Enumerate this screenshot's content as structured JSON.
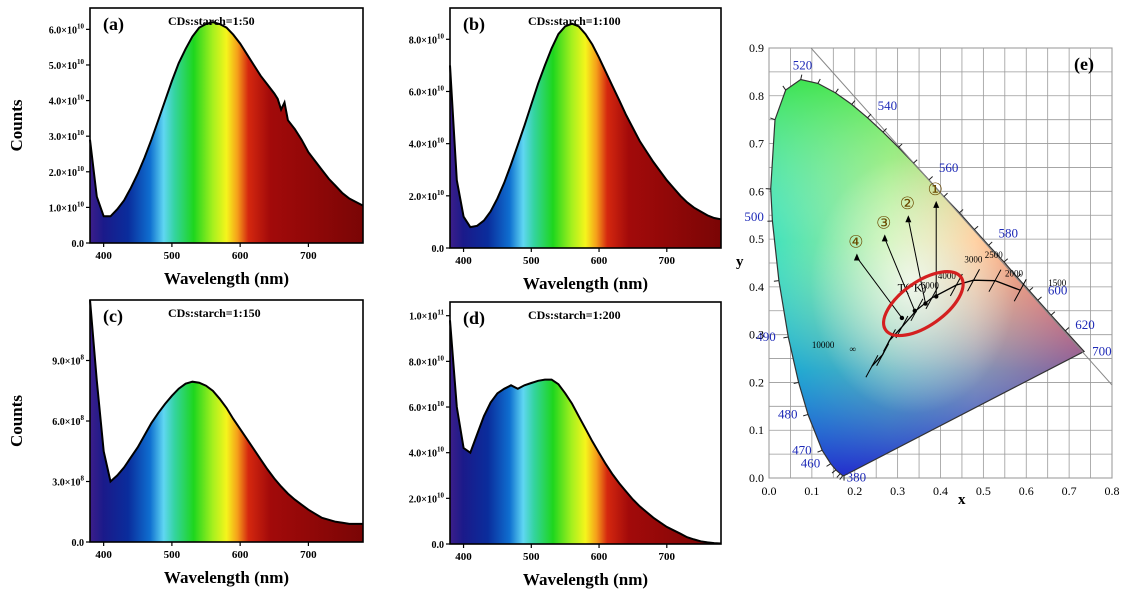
{
  "chart_data": [
    {
      "type": "area",
      "panel_label": "(a)",
      "title": "CDs:starch=1:50",
      "xlabel": "Wavelength (nm)",
      "ylabel": "Counts",
      "xlim": [
        380,
        780
      ],
      "ylim": [
        0,
        66000000000.0
      ],
      "xticks": [
        400,
        500,
        600,
        700
      ],
      "yticks": [
        {
          "v": 0,
          "l": "0.0"
        },
        {
          "v": 10000000000.0,
          "m": "1.0",
          "e": "10"
        },
        {
          "v": 20000000000.0,
          "m": "2.0",
          "e": "10"
        },
        {
          "v": 30000000000.0,
          "m": "3.0",
          "e": "10"
        },
        {
          "v": 40000000000.0,
          "m": "4.0",
          "e": "10"
        },
        {
          "v": 50000000000.0,
          "m": "5.0",
          "e": "10"
        },
        {
          "v": 60000000000.0,
          "m": "6.0",
          "e": "10"
        }
      ],
      "x": [
        380,
        390,
        400,
        410,
        420,
        430,
        440,
        450,
        460,
        470,
        480,
        490,
        500,
        510,
        520,
        530,
        540,
        550,
        560,
        570,
        580,
        590,
        600,
        610,
        620,
        630,
        640,
        650,
        655,
        660,
        665,
        670,
        680,
        690,
        700,
        710,
        720,
        730,
        740,
        750,
        760,
        770,
        780
      ],
      "y": [
        29000000000.0,
        13000000000.0,
        7500000000.0,
        7500000000.0,
        9500000000.0,
        12000000000.0,
        15500000000.0,
        19500000000.0,
        24000000000.0,
        29000000000.0,
        34500000000.0,
        40000000000.0,
        45500000000.0,
        50500000000.0,
        54500000000.0,
        58000000000.0,
        60500000000.0,
        61500000000.0,
        62000000000.0,
        61500000000.0,
        60500000000.0,
        58500000000.0,
        56000000000.0,
        53000000000.0,
        50000000000.0,
        47000000000.0,
        44500000000.0,
        42000000000.0,
        40500000000.0,
        37500000000.0,
        39500000000.0,
        34500000000.0,
        32000000000.0,
        29000000000.0,
        25500000000.0,
        23000000000.0,
        20500000000.0,
        18000000000.0,
        16000000000.0,
        14000000000.0,
        12500000000.0,
        11500000000.0,
        10500000000.0
      ]
    },
    {
      "type": "area",
      "panel_label": "(b)",
      "title": "CDs:starch=1:100",
      "xlabel": "Wavelength (nm)",
      "ylabel": "",
      "xlim": [
        380,
        780
      ],
      "ylim": [
        0,
        92000000000.0
      ],
      "xticks": [
        400,
        500,
        600,
        700
      ],
      "yticks": [
        {
          "v": 0,
          "l": "0.0"
        },
        {
          "v": 20000000000.0,
          "m": "2.0",
          "e": "10"
        },
        {
          "v": 40000000000.0,
          "m": "4.0",
          "e": "10"
        },
        {
          "v": 60000000000.0,
          "m": "6.0",
          "e": "10"
        },
        {
          "v": 80000000000.0,
          "m": "8.0",
          "e": "10"
        }
      ],
      "x": [
        380,
        390,
        400,
        410,
        420,
        430,
        440,
        450,
        460,
        470,
        480,
        490,
        500,
        510,
        520,
        530,
        540,
        550,
        560,
        570,
        580,
        590,
        600,
        610,
        620,
        630,
        640,
        650,
        660,
        670,
        680,
        690,
        700,
        710,
        720,
        730,
        740,
        750,
        760,
        770,
        780
      ],
      "y": [
        70000000000.0,
        26000000000.0,
        12000000000.0,
        8000000000.0,
        8500000000.0,
        10500000000.0,
        14000000000.0,
        19000000000.0,
        25000000000.0,
        32000000000.0,
        39500000000.0,
        47000000000.0,
        55000000000.0,
        63000000000.0,
        70000000000.0,
        76500000000.0,
        82000000000.0,
        85000000000.0,
        86000000000.0,
        85000000000.0,
        82000000000.0,
        78000000000.0,
        73000000000.0,
        67500000000.0,
        62000000000.0,
        56500000000.0,
        51000000000.0,
        46000000000.0,
        41000000000.0,
        37000000000.0,
        33000000000.0,
        29500000000.0,
        26000000000.0,
        23000000000.0,
        20000000000.0,
        17500000000.0,
        15500000000.0,
        14000000000.0,
        12500000000.0,
        11500000000.0,
        11000000000.0
      ]
    },
    {
      "type": "area",
      "panel_label": "(c)",
      "title": "CDs:starch=1:150",
      "xlabel": "Wavelength (nm)",
      "ylabel": "Counts",
      "xlim": [
        380,
        780
      ],
      "ylim": [
        0,
        1200000000.0
      ],
      "xticks": [
        400,
        500,
        600,
        700
      ],
      "yticks": [
        {
          "v": 0,
          "l": "0.0"
        },
        {
          "v": 300000000.0,
          "m": "3.0",
          "e": "8"
        },
        {
          "v": 600000000.0,
          "m": "6.0",
          "e": "8"
        },
        {
          "v": 900000000.0,
          "m": "9.0",
          "e": "8"
        }
      ],
      "x": [
        380,
        390,
        400,
        410,
        420,
        430,
        440,
        450,
        460,
        470,
        480,
        490,
        500,
        510,
        520,
        530,
        540,
        550,
        560,
        570,
        580,
        590,
        600,
        610,
        620,
        630,
        640,
        650,
        660,
        670,
        680,
        690,
        700,
        710,
        720,
        730,
        740,
        750,
        760,
        770,
        780
      ],
      "y": [
        1200000000.0,
        800000000.0,
        450000000.0,
        300000000.0,
        330000000.0,
        370000000.0,
        420000000.0,
        470000000.0,
        530000000.0,
        590000000.0,
        640000000.0,
        685000000.0,
        725000000.0,
        760000000.0,
        785000000.0,
        795000000.0,
        790000000.0,
        775000000.0,
        750000000.0,
        710000000.0,
        665000000.0,
        610000000.0,
        560000000.0,
        510000000.0,
        460000000.0,
        410000000.0,
        360000000.0,
        315000000.0,
        275000000.0,
        240000000.0,
        210000000.0,
        185000000.0,
        160000000.0,
        140000000.0,
        120000000.0,
        110000000.0,
        100000000.0,
        95000000.0,
        90000000.0,
        90000000.0,
        90000000.0
      ]
    },
    {
      "type": "area",
      "panel_label": "(d)",
      "title": "CDs:starch=1:200",
      "xlabel": "Wavelength (nm)",
      "ylabel": "",
      "xlim": [
        380,
        780
      ],
      "ylim": [
        0,
        106000000000.0
      ],
      "xticks": [
        400,
        500,
        600,
        700
      ],
      "yticks": [
        {
          "v": 0,
          "l": "0.0"
        },
        {
          "v": 20000000000.0,
          "m": "2.0",
          "e": "10"
        },
        {
          "v": 40000000000.0,
          "m": "4.0",
          "e": "10"
        },
        {
          "v": 60000000000.0,
          "m": "6.0",
          "e": "10"
        },
        {
          "v": 80000000000.0,
          "m": "8.0",
          "e": "10"
        },
        {
          "v": 100000000000.0,
          "m": "1.0",
          "e": "11"
        }
      ],
      "x": [
        380,
        390,
        400,
        410,
        420,
        430,
        440,
        450,
        460,
        470,
        480,
        490,
        500,
        510,
        520,
        530,
        540,
        550,
        560,
        570,
        580,
        590,
        600,
        610,
        620,
        630,
        640,
        650,
        660,
        670,
        680,
        690,
        700,
        710,
        720,
        730,
        740,
        750,
        760,
        770,
        780
      ],
      "y": [
        98000000000.0,
        60000000000.0,
        42000000000.0,
        40000000000.0,
        48000000000.0,
        56000000000.0,
        62000000000.0,
        66000000000.0,
        68000000000.0,
        69500000000.0,
        68000000000.0,
        69500000000.0,
        70500000000.0,
        71500000000.0,
        72000000000.0,
        72000000000.0,
        70000000000.0,
        66000000000.0,
        61500000000.0,
        56000000000.0,
        50500000000.0,
        45000000000.0,
        40000000000.0,
        35000000000.0,
        30500000000.0,
        26500000000.0,
        23000000000.0,
        19500000000.0,
        16500000000.0,
        14000000000.0,
        11500000000.0,
        9500000000.0,
        7500000000.0,
        6000000000.0,
        4500000000.0,
        3000000000.0,
        2000000000.0,
        1200000000.0,
        700000000.0,
        400000000.0,
        200000000.0
      ]
    },
    {
      "type": "scatter",
      "panel_label": "(e)",
      "title": "",
      "xlabel": "x",
      "ylabel": "y",
      "xlim": [
        0,
        0.8
      ],
      "ylim": [
        0,
        0.9
      ],
      "xticks": [
        "0.0",
        "0.1",
        "0.2",
        "0.3",
        "0.4",
        "0.5",
        "0.6",
        "0.7",
        "0.8"
      ],
      "yticks": [
        "0.0",
        "0.1",
        "0.2",
        "0.3",
        "0.4",
        "0.5",
        "0.6",
        "0.7",
        "0.8",
        "0.9"
      ],
      "spectral_locus_labels": [
        {
          "t": "380",
          "x": 0.174,
          "y": 0.005
        },
        {
          "t": "460",
          "x": 0.144,
          "y": 0.03
        },
        {
          "t": "470",
          "x": 0.124,
          "y": 0.058
        },
        {
          "t": "480",
          "x": 0.091,
          "y": 0.133
        },
        {
          "t": "490",
          "x": 0.045,
          "y": 0.295
        },
        {
          "t": "500",
          "x": 0.008,
          "y": 0.538
        },
        {
          "t": "520",
          "x": 0.074,
          "y": 0.834
        },
        {
          "t": "540",
          "x": 0.23,
          "y": 0.754
        },
        {
          "t": "560",
          "x": 0.373,
          "y": 0.624
        },
        {
          "t": "580",
          "x": 0.512,
          "y": 0.487
        },
        {
          "t": "600",
          "x": 0.627,
          "y": 0.372
        },
        {
          "t": "620",
          "x": 0.691,
          "y": 0.308
        },
        {
          "t": "700",
          "x": 0.735,
          "y": 0.265
        }
      ],
      "cct_labels": [
        "10000",
        "T(°K)",
        "∞",
        "1500",
        "2000",
        "2500",
        "3000",
        "4000",
        "6000"
      ],
      "samples": [
        {
          "label": "①",
          "x": 0.39,
          "y": 0.38
        },
        {
          "label": "②",
          "x": 0.365,
          "y": 0.365
        },
        {
          "label": "③",
          "x": 0.34,
          "y": 0.35
        },
        {
          "label": "④",
          "x": 0.31,
          "y": 0.335
        }
      ],
      "highlight_color": "#d42020"
    }
  ]
}
